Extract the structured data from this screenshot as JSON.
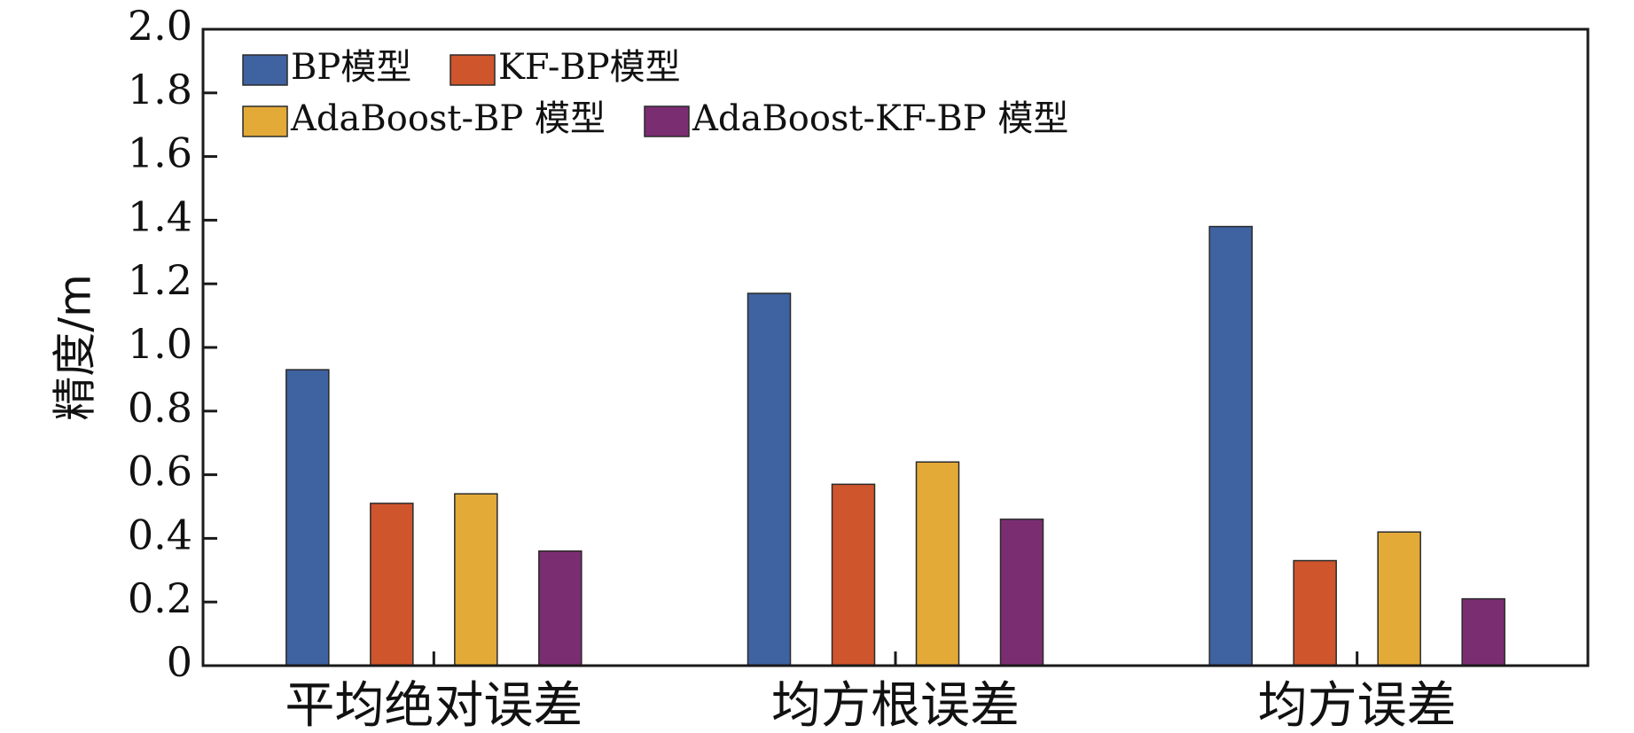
{
  "chart_data": {
    "type": "bar",
    "title": "",
    "xlabel": "",
    "ylabel": "精度/m",
    "ylim": [
      0,
      2.0
    ],
    "yticks": [
      "0",
      "0.2",
      "0.4",
      "0.6",
      "0.8",
      "1.0",
      "1.2",
      "1.4",
      "1.6",
      "1.8",
      "2.0"
    ],
    "grid": false,
    "legend_position": "top-left",
    "categories": [
      "平均绝对误差",
      "均方根误差",
      "均方误差"
    ],
    "series": [
      {
        "name": "BP模型",
        "color": "#3f62a0",
        "values": [
          0.93,
          1.17,
          1.38
        ]
      },
      {
        "name": "KF-BP模型",
        "color": "#cf552c",
        "values": [
          0.51,
          0.57,
          0.33
        ]
      },
      {
        "name": "AdaBoost-BP 模型",
        "color": "#e3aa38",
        "values": [
          0.54,
          0.64,
          0.42
        ]
      },
      {
        "name": "AdaBoost-KF-BP 模型",
        "color": "#7b2d72",
        "values": [
          0.36,
          0.46,
          0.21
        ]
      }
    ]
  }
}
